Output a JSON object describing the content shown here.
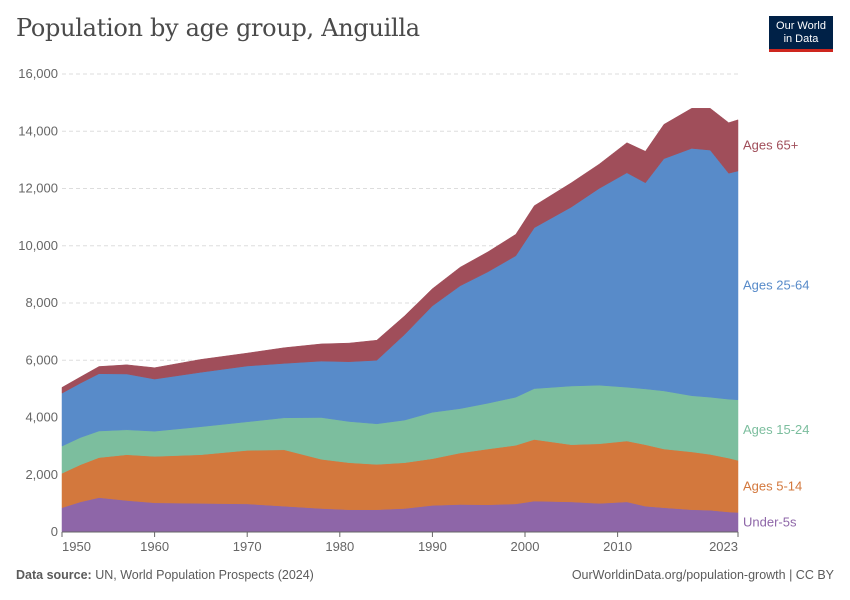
{
  "header": {
    "title": "Population by age group, Anguilla",
    "logo_line1": "Our World",
    "logo_line2": "in Data"
  },
  "footer": {
    "source_label": "Data source:",
    "source_text": "UN, World Population Prospects (2024)",
    "url": "OurWorldinData.org/population-growth | CC BY"
  },
  "chart_data": {
    "type": "area",
    "stacked": true,
    "title": "Population by age group, Anguilla",
    "x": [
      1950,
      1952,
      1954,
      1957,
      1960,
      1965,
      1970,
      1974,
      1978,
      1981,
      1984,
      1987,
      1990,
      1993,
      1996,
      1999,
      2001,
      2005,
      2008,
      2011,
      2013,
      2015,
      2018,
      2020,
      2022,
      2023
    ],
    "xticks": [
      1950,
      1960,
      1970,
      1980,
      1990,
      2000,
      2010,
      2023
    ],
    "ylim": [
      0,
      16000
    ],
    "yticks": [
      0,
      2000,
      4000,
      6000,
      8000,
      10000,
      12000,
      14000,
      16000
    ],
    "ytick_labels": [
      "0",
      "2,000",
      "4,000",
      "6,000",
      "8,000",
      "10,000",
      "12,000",
      "14,000",
      "16,000"
    ],
    "grid": true,
    "legend": "right-inline",
    "series": [
      {
        "name": "Under-5s",
        "color": "#8e66a8",
        "values": [
          850,
          1050,
          1200,
          1100,
          1020,
          1000,
          980,
          900,
          820,
          780,
          780,
          820,
          930,
          960,
          950,
          980,
          1080,
          1050,
          1000,
          1050,
          900,
          850,
          780,
          760,
          700,
          680
        ]
      },
      {
        "name": "Ages 5-14",
        "color": "#d3783d",
        "values": [
          1200,
          1300,
          1400,
          1600,
          1620,
          1700,
          1870,
          1970,
          1720,
          1640,
          1580,
          1600,
          1630,
          1800,
          1950,
          2050,
          2150,
          2000,
          2080,
          2130,
          2150,
          2050,
          2020,
          1950,
          1880,
          1820
        ]
      },
      {
        "name": "Ages 15-24",
        "color": "#7cbe9e",
        "values": [
          950,
          950,
          930,
          870,
          880,
          980,
          1000,
          1120,
          1460,
          1440,
          1420,
          1490,
          1620,
          1550,
          1600,
          1680,
          1780,
          2050,
          2050,
          1880,
          1950,
          2030,
          1960,
          2000,
          2060,
          2120
        ]
      },
      {
        "name": "Ages 25-64",
        "color": "#588bc9",
        "values": [
          1850,
          1900,
          2000,
          1950,
          1820,
          1900,
          1950,
          1900,
          1970,
          2090,
          2220,
          2990,
          3720,
          4290,
          4590,
          4940,
          5620,
          6250,
          6870,
          7490,
          7200,
          8110,
          8640,
          8630,
          7890,
          7990
        ]
      },
      {
        "name": "Ages 65+",
        "color": "#a04e5a",
        "values": [
          200,
          220,
          250,
          320,
          400,
          450,
          450,
          550,
          600,
          650,
          700,
          650,
          600,
          650,
          700,
          750,
          770,
          850,
          850,
          1050,
          1100,
          1200,
          1400,
          1460,
          1770,
          1790
        ]
      }
    ],
    "colors": {
      "grid": "#dddddd",
      "axis": "#666666",
      "title": "#4a4a4a",
      "logo_bg": "#002147",
      "logo_accent": "#ce261e"
    }
  }
}
